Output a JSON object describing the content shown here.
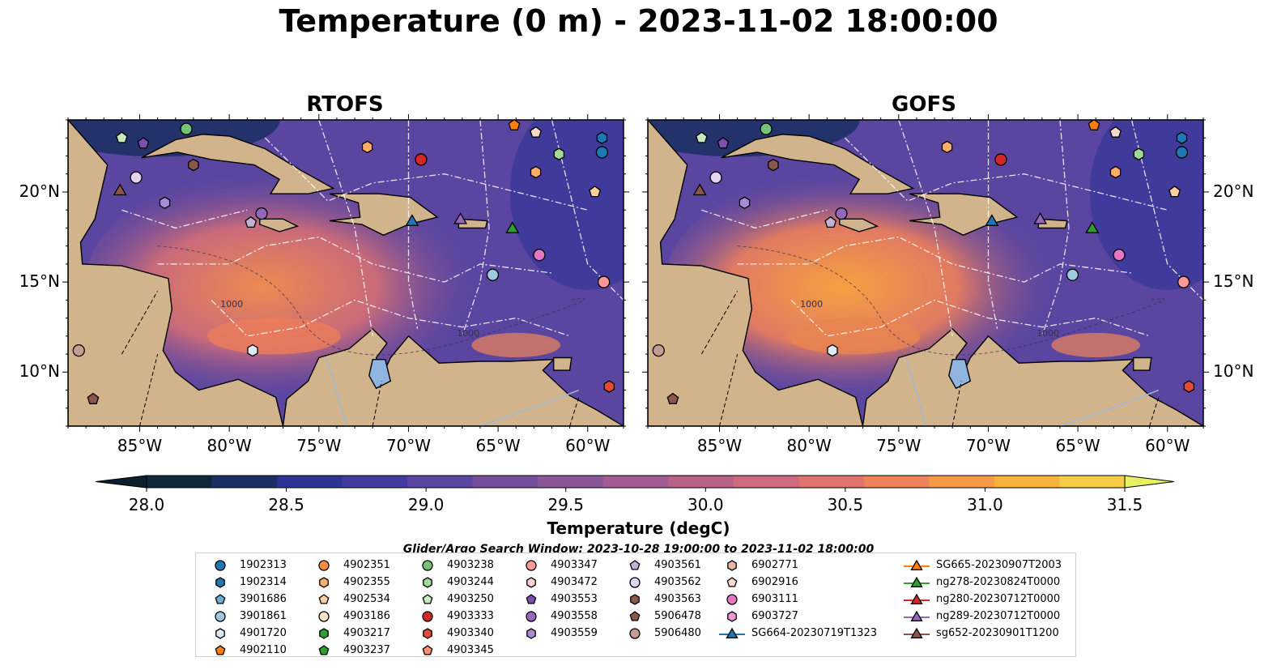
{
  "title": "Temperature (0 m) - 2023-11-02 18:00:00",
  "panels": [
    {
      "title": "RTOFS"
    },
    {
      "title": "GOFS"
    }
  ],
  "lon_ticks": [
    "85°W",
    "80°W",
    "75°W",
    "70°W",
    "65°W",
    "60°W"
  ],
  "lat_ticks": [
    "20°N",
    "15°N",
    "10°N"
  ],
  "map_extent": {
    "lon": [
      -89,
      -58
    ],
    "lat": [
      7,
      24
    ]
  },
  "contour_labels": [
    "1000",
    "1000"
  ],
  "colorbar": {
    "label": "Temperature (degC)",
    "ticks": [
      "28.0",
      "28.5",
      "29.0",
      "29.5",
      "30.0",
      "30.5",
      "31.0",
      "31.5"
    ],
    "range": [
      28.0,
      31.5
    ],
    "colors": [
      "#10283a",
      "#1b2f62",
      "#2d3494",
      "#423c9f",
      "#5a46a0",
      "#744e9d",
      "#8a5698",
      "#a05c92",
      "#b8628a",
      "#cd6a7e",
      "#e0746d",
      "#ee835a",
      "#f69a47",
      "#f8b33d",
      "#f7cc47"
    ],
    "under_color": "#0c1f2c",
    "over_color": "#e8f060"
  },
  "search_window": "Glider/Argo Search Window: 2023-10-28 19:00:00 to 2023-11-02 18:00:00",
  "legend_columns": [
    [
      {
        "label": "1902313",
        "marker": "circle",
        "color": "#1f77b4"
      },
      {
        "label": "1902314",
        "marker": "hexagon",
        "color": "#1f77b4"
      },
      {
        "label": "3901686",
        "marker": "pentagon",
        "color": "#6baed6"
      },
      {
        "label": "3901861",
        "marker": "circle",
        "color": "#9ecae1"
      },
      {
        "label": "4901720",
        "marker": "hexagon",
        "color": "#deebf7"
      },
      {
        "label": "4902110",
        "marker": "pentagon",
        "color": "#ff7f0e"
      }
    ],
    [
      {
        "label": "4902351",
        "marker": "circle",
        "color": "#fd8d3c"
      },
      {
        "label": "4902355",
        "marker": "hexagon",
        "color": "#fdae6b"
      },
      {
        "label": "4902534",
        "marker": "pentagon",
        "color": "#fdd0a2"
      },
      {
        "label": "4903186",
        "marker": "circle",
        "color": "#fee6ce"
      },
      {
        "label": "4903217",
        "marker": "hexagon",
        "color": "#2ca02c"
      },
      {
        "label": "4903237",
        "marker": "pentagon",
        "color": "#2ca02c"
      }
    ],
    [
      {
        "label": "4903238",
        "marker": "circle",
        "color": "#74c476"
      },
      {
        "label": "4903244",
        "marker": "hexagon",
        "color": "#a1d99b"
      },
      {
        "label": "4903250",
        "marker": "pentagon",
        "color": "#c7e9c0"
      },
      {
        "label": "4903333",
        "marker": "circle",
        "color": "#d62728"
      },
      {
        "label": "4903340",
        "marker": "hexagon",
        "color": "#e34a33"
      },
      {
        "label": "4903345",
        "marker": "pentagon",
        "color": "#fc9272"
      }
    ],
    [
      {
        "label": "4903347",
        "marker": "circle",
        "color": "#ff9896"
      },
      {
        "label": "4903472",
        "marker": "hexagon",
        "color": "#fcd2d0"
      },
      {
        "label": "4903553",
        "marker": "pentagon",
        "color": "#7b4fb0"
      },
      {
        "label": "4903558",
        "marker": "circle",
        "color": "#9467bd"
      },
      {
        "label": "4903559",
        "marker": "hexagon",
        "color": "#a98bd4"
      }
    ],
    [
      {
        "label": "4903561",
        "marker": "pentagon",
        "color": "#c5b0d5"
      },
      {
        "label": "4903562",
        "marker": "circle",
        "color": "#e3d3f0"
      },
      {
        "label": "4903563",
        "marker": "hexagon",
        "color": "#8c564b"
      },
      {
        "label": "5906478",
        "marker": "pentagon",
        "color": "#8c564b"
      },
      {
        "label": "5906480",
        "marker": "circle",
        "color": "#c49c94"
      }
    ],
    [
      {
        "label": "6902771",
        "marker": "hexagon",
        "color": "#e7b8a8"
      },
      {
        "label": "6902916",
        "marker": "pentagon",
        "color": "#f7d8cc"
      },
      {
        "label": "6903111",
        "marker": "circle",
        "color": "#e377c2"
      },
      {
        "label": "6903727",
        "marker": "hexagon",
        "color": "#f09cd4"
      },
      {
        "label": "SG664-20230719T1323",
        "marker": "triangle-line",
        "color": "#1f77b4"
      }
    ],
    [
      {
        "label": "SG665-20230907T2003",
        "marker": "triangle-line",
        "color": "#ff7f0e"
      },
      {
        "label": "ng278-20230824T0000",
        "marker": "triangle-line",
        "color": "#2ca02c"
      },
      {
        "label": "ng280-20230712T0000",
        "marker": "triangle-line",
        "color": "#d62728"
      },
      {
        "label": "ng289-20230712T0000",
        "marker": "triangle-line",
        "color": "#9467bd"
      },
      {
        "label": "sg652-20230901T1200",
        "marker": "triangle-line",
        "color": "#8c564b"
      }
    ]
  ],
  "markers": [
    {
      "lon": -86.0,
      "lat": 23.0,
      "shape": "pentagon",
      "color": "#c7e9c0"
    },
    {
      "lon": -84.8,
      "lat": 22.7,
      "shape": "pentagon",
      "color": "#7b4fb0"
    },
    {
      "lon": -82.4,
      "lat": 23.5,
      "shape": "circle",
      "color": "#74c476"
    },
    {
      "lon": -82.0,
      "lat": 21.5,
      "shape": "hexagon",
      "color": "#8c564b"
    },
    {
      "lon": -85.2,
      "lat": 20.8,
      "shape": "circle",
      "color": "#e3d3f0"
    },
    {
      "lon": -86.1,
      "lat": 20.1,
      "shape": "triangle",
      "color": "#8c564b"
    },
    {
      "lon": -83.6,
      "lat": 19.4,
      "shape": "hexagon",
      "color": "#a98bd4"
    },
    {
      "lon": -78.2,
      "lat": 18.8,
      "shape": "circle",
      "color": "#9467bd"
    },
    {
      "lon": -78.8,
      "lat": 18.3,
      "shape": "pentagon",
      "color": "#c5b0d5"
    },
    {
      "lon": -72.3,
      "lat": 22.5,
      "shape": "hexagon",
      "color": "#fdae6b"
    },
    {
      "lon": -69.3,
      "lat": 21.8,
      "shape": "circle",
      "color": "#d62728"
    },
    {
      "lon": -69.8,
      "lat": 18.4,
      "shape": "triangle",
      "color": "#1f77b4"
    },
    {
      "lon": -67.1,
      "lat": 18.5,
      "shape": "triangle",
      "color": "#9467bd"
    },
    {
      "lon": -64.2,
      "lat": 18.0,
      "shape": "triangle",
      "color": "#2ca02c"
    },
    {
      "lon": -64.1,
      "lat": 23.7,
      "shape": "pentagon",
      "color": "#ff7f0e"
    },
    {
      "lon": -62.9,
      "lat": 23.3,
      "shape": "pentagon",
      "color": "#f7d8cc"
    },
    {
      "lon": -61.6,
      "lat": 22.1,
      "shape": "hexagon",
      "color": "#a1d99b"
    },
    {
      "lon": -62.9,
      "lat": 21.1,
      "shape": "hexagon",
      "color": "#fdae6b"
    },
    {
      "lon": -59.6,
      "lat": 20.0,
      "shape": "pentagon",
      "color": "#fdd0a2"
    },
    {
      "lon": -59.2,
      "lat": 23.0,
      "shape": "hexagon",
      "color": "#1f77b4"
    },
    {
      "lon": -59.2,
      "lat": 22.2,
      "shape": "circle",
      "color": "#1f77b4"
    },
    {
      "lon": -62.7,
      "lat": 16.5,
      "shape": "circle",
      "color": "#e377c2"
    },
    {
      "lon": -65.3,
      "lat": 15.4,
      "shape": "circle",
      "color": "#9ecae1"
    },
    {
      "lon": -59.1,
      "lat": 15.0,
      "shape": "circle",
      "color": "#ff9896"
    },
    {
      "lon": -78.7,
      "lat": 11.2,
      "shape": "hexagon",
      "color": "#deebf7"
    },
    {
      "lon": -88.4,
      "lat": 11.2,
      "shape": "circle",
      "color": "#c49c94"
    },
    {
      "lon": -87.6,
      "lat": 8.5,
      "shape": "pentagon",
      "color": "#8c564b"
    },
    {
      "lon": -58.8,
      "lat": 9.2,
      "shape": "hexagon",
      "color": "#e34a33"
    }
  ]
}
